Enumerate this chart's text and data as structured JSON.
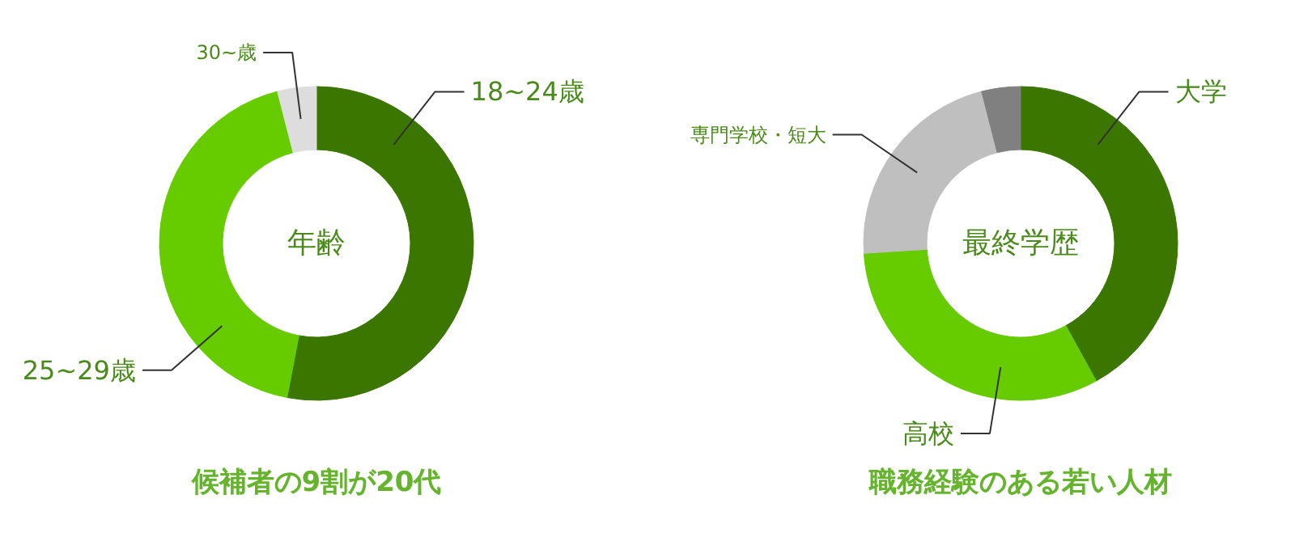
{
  "chart_data": [
    {
      "type": "donut",
      "title": "候補者の9割が20代",
      "subtitle": "年齢",
      "categories": [
        "18~24歳",
        "25~29歳",
        "30~歳"
      ],
      "values": [
        53,
        43,
        4
      ],
      "colors": [
        "#3a7600",
        "#66cc00",
        "#dddddd"
      ]
    },
    {
      "type": "donut",
      "title": "職務経験のある若い人材",
      "subtitle": "最終学歴",
      "categories": [
        "大学",
        "高校",
        "専門学校・短大",
        null
      ],
      "values": [
        42,
        32,
        22,
        4
      ],
      "colors": [
        "#3a7600",
        "#66cc00",
        "#bfbfbf",
        "#808080"
      ]
    }
  ]
}
